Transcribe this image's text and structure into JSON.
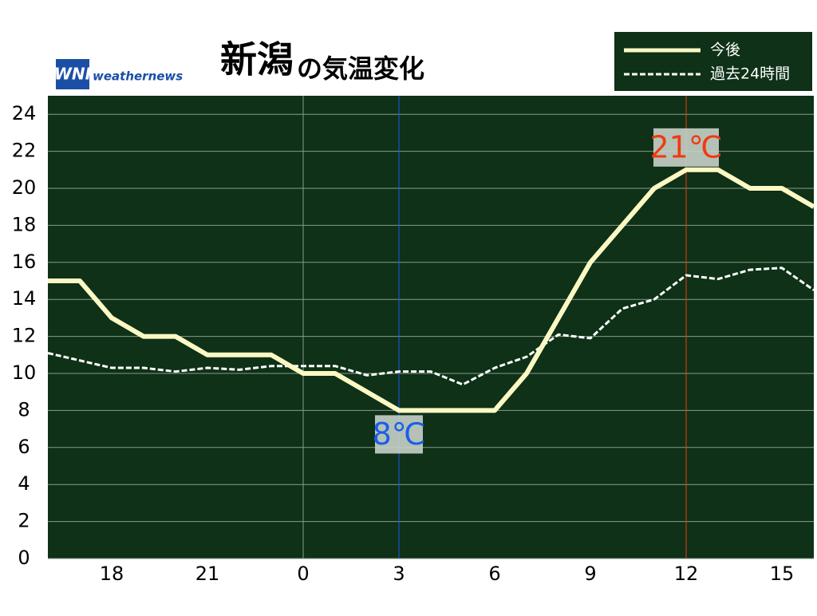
{
  "chart_data": {
    "type": "line",
    "title": "新潟",
    "subtitle": "の気温変化",
    "logo": {
      "mark": "WNI",
      "name": "weathernews"
    },
    "x": [
      -8,
      -7,
      -6,
      -5,
      -4,
      -3,
      -2,
      -1,
      0,
      1,
      2,
      3,
      4,
      5,
      6,
      7,
      8,
      9,
      10,
      11,
      12,
      13,
      14,
      15,
      16
    ],
    "series": [
      {
        "name": "今後",
        "color": "#fbf8c4",
        "dash": false,
        "values": [
          15,
          15,
          13,
          12,
          12,
          11,
          11,
          11,
          10,
          10,
          9,
          8,
          8,
          8,
          8,
          10,
          13,
          16,
          18,
          20,
          21,
          21,
          20,
          20,
          19
        ]
      },
      {
        "name": "過去24時間",
        "color": "#ffffff",
        "dash": true,
        "values": [
          11.1,
          10.7,
          10.3,
          10.3,
          10.1,
          10.3,
          10.2,
          10.4,
          10.4,
          10.4,
          9.9,
          10.1,
          10.1,
          9.4,
          10.3,
          10.9,
          12.1,
          11.9,
          13.5,
          14,
          15.3,
          15.1,
          15.6,
          15.7,
          14.5
        ]
      }
    ],
    "xlim": [
      -8,
      16
    ],
    "xticks": [
      {
        "value": -6,
        "label": "18"
      },
      {
        "value": -3,
        "label": "21"
      },
      0,
      3,
      6,
      9,
      12,
      15
    ],
    "ylim": [
      0,
      25
    ],
    "yticks": [
      0,
      2,
      4,
      6,
      8,
      10,
      12,
      14,
      16,
      18,
      20,
      22,
      24
    ],
    "grid": true,
    "background": "#0e3117",
    "annotations": [
      {
        "text": "8℃",
        "x": 3,
        "y": 8,
        "color": "#1a5fe8"
      },
      {
        "text": "21℃",
        "x": 12,
        "y": 21,
        "color": "#f03a10"
      }
    ]
  }
}
